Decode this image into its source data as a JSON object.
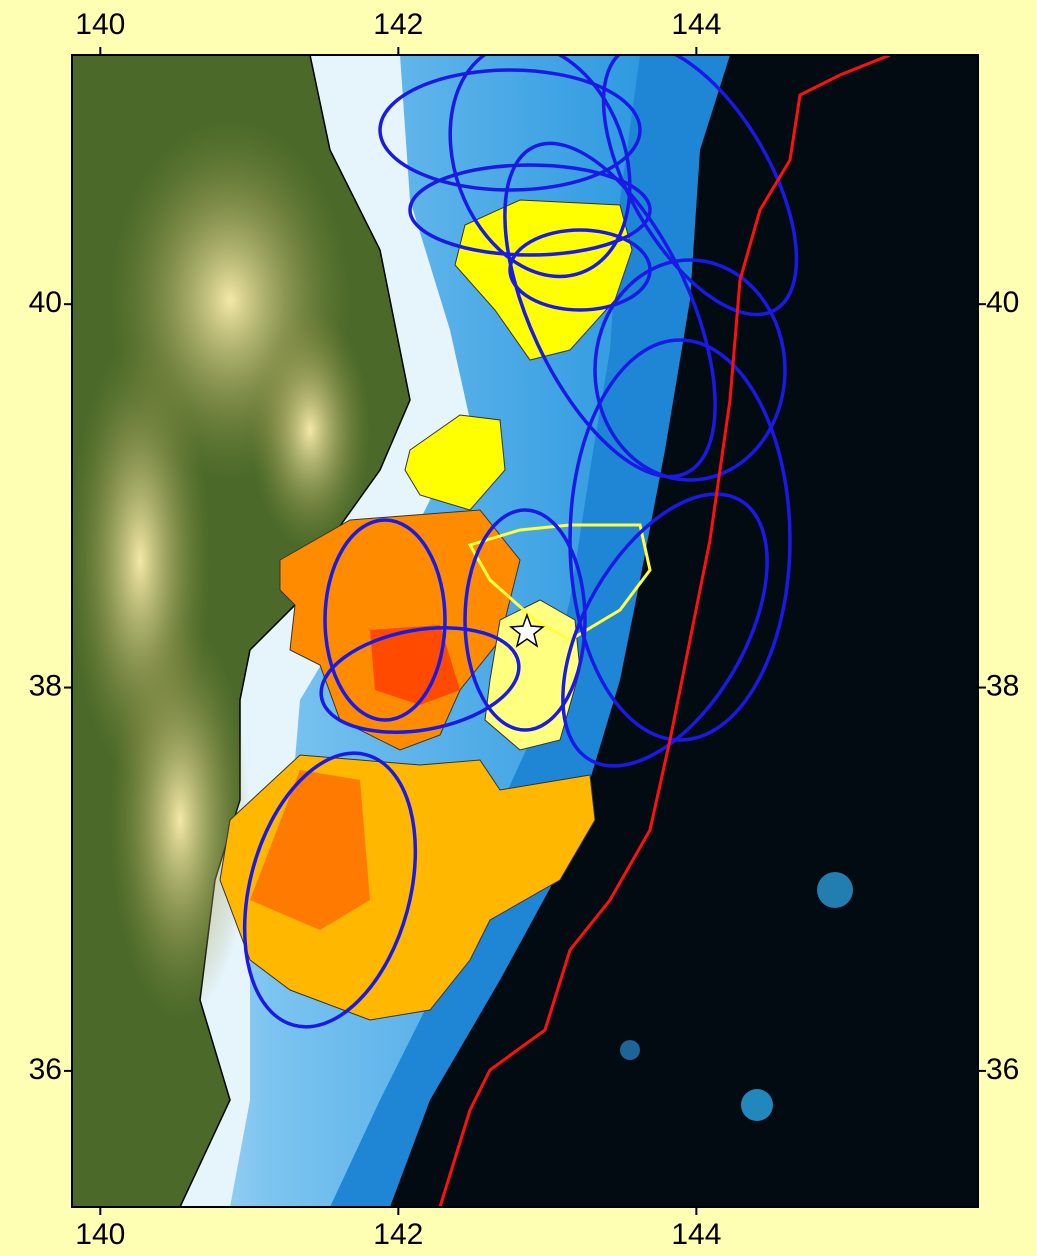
{
  "map": {
    "xlim": [
      139.81,
      145.89
    ],
    "ylim": [
      35.29,
      41.3
    ],
    "xticks": [
      140,
      142,
      144
    ],
    "yticks": [
      36,
      38,
      40
    ]
  }
}
